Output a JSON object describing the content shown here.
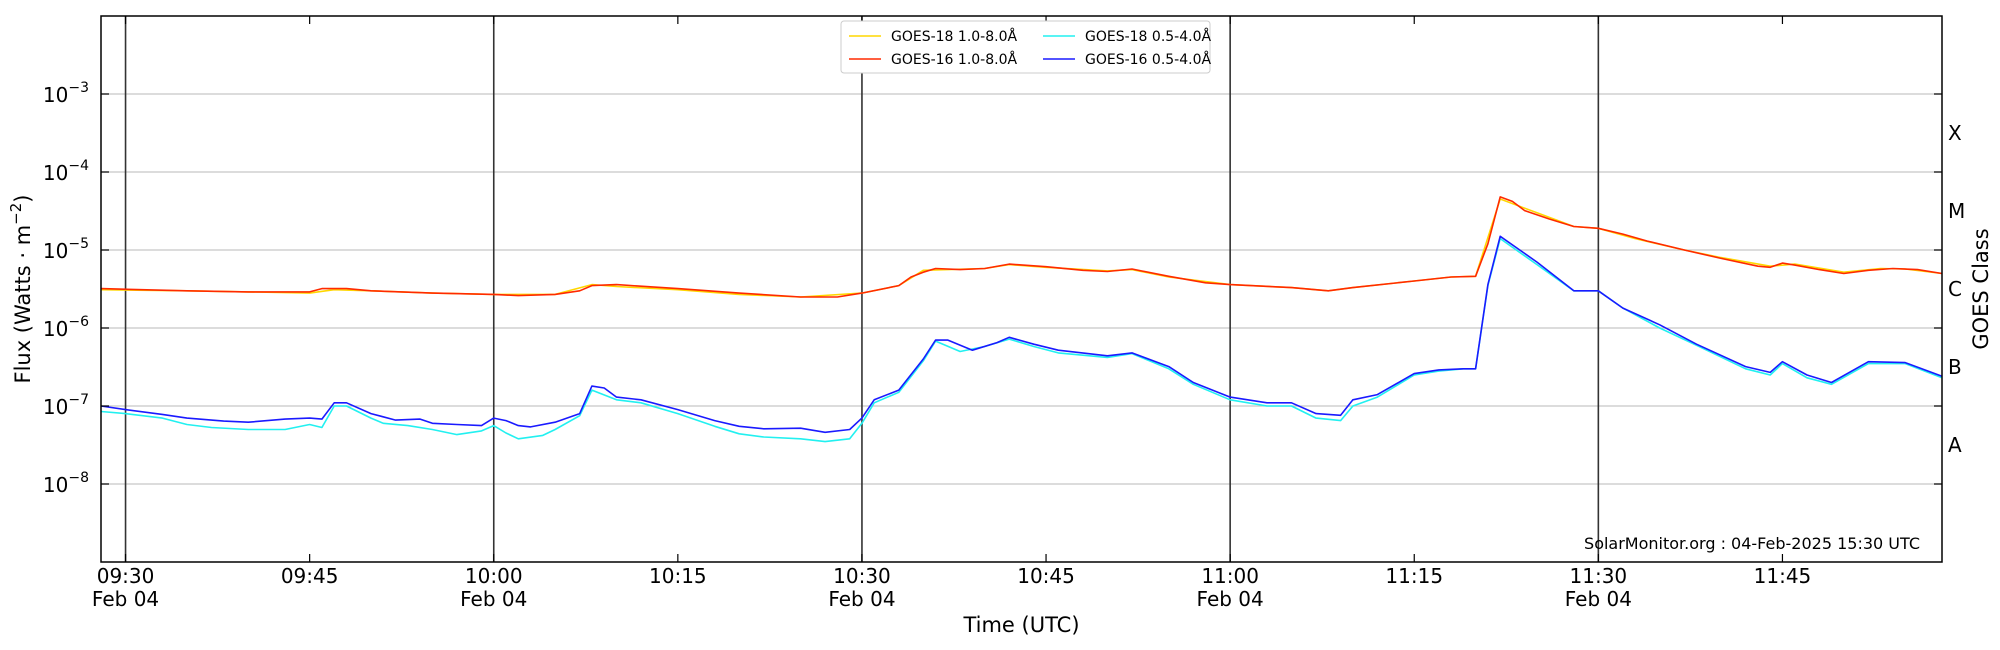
{
  "chart_data": {
    "type": "line",
    "xlabel": "Time (UTC)",
    "ylabel": "Flux (Watts · m⁻²)",
    "y2label": "GOES Class",
    "yscale": "log",
    "ylim": [
      1e-09,
      0.01
    ],
    "xlim": [
      "09:28",
      "11:58"
    ],
    "grid": "horizontal",
    "legend_position": "top-center",
    "credit": "SolarMonitor.org : 04-Feb-2025 15:30 UTC",
    "y_ticks": [
      {
        "value": 0.001,
        "base": "10",
        "exp": "−3"
      },
      {
        "value": 0.0001,
        "base": "10",
        "exp": "−4"
      },
      {
        "value": 1e-05,
        "base": "10",
        "exp": "−5"
      },
      {
        "value": 1e-06,
        "base": "10",
        "exp": "−6"
      },
      {
        "value": 1e-07,
        "base": "10",
        "exp": "−7"
      },
      {
        "value": 1e-08,
        "base": "10",
        "exp": "−8"
      }
    ],
    "x_ticks": [
      {
        "time": "09:30",
        "date": "Feb 04",
        "vline": true
      },
      {
        "time": "09:45",
        "date": "",
        "vline": false
      },
      {
        "time": "10:00",
        "date": "Feb 04",
        "vline": true
      },
      {
        "time": "10:15",
        "date": "",
        "vline": false
      },
      {
        "time": "10:30",
        "date": "Feb 04",
        "vline": true
      },
      {
        "time": "10:45",
        "date": "",
        "vline": false
      },
      {
        "time": "11:00",
        "date": "Feb 04",
        "vline": true
      },
      {
        "time": "11:15",
        "date": "",
        "vline": false
      },
      {
        "time": "11:30",
        "date": "Feb 04",
        "vline": true
      },
      {
        "time": "11:45",
        "date": "",
        "vline": false
      }
    ],
    "goes_classes": [
      {
        "label": "X",
        "lo": 0.0001,
        "hi": 0.001
      },
      {
        "label": "M",
        "lo": 1e-05,
        "hi": 0.0001
      },
      {
        "label": "C",
        "lo": 1e-06,
        "hi": 1e-05
      },
      {
        "label": "B",
        "lo": 1e-07,
        "hi": 1e-06
      },
      {
        "label": "A",
        "lo": 1e-08,
        "hi": 1e-07
      }
    ],
    "series": [
      {
        "name": "GOES-18 1.0-8.0Å",
        "color": "#ffd700",
        "points": [
          [
            "09:28",
            3.1e-06
          ],
          [
            "09:35",
            3e-06
          ],
          [
            "09:40",
            2.9e-06
          ],
          [
            "09:45",
            2.8e-06
          ],
          [
            "09:47",
            3.1e-06
          ],
          [
            "09:50",
            3e-06
          ],
          [
            "09:55",
            2.8e-06
          ],
          [
            "10:00",
            2.7e-06
          ],
          [
            "10:05",
            2.7e-06
          ],
          [
            "10:08",
            3.6e-06
          ],
          [
            "10:10",
            3.4e-06
          ],
          [
            "10:15",
            3.1e-06
          ],
          [
            "10:20",
            2.7e-06
          ],
          [
            "10:25",
            2.5e-06
          ],
          [
            "10:30",
            2.8e-06
          ],
          [
            "10:33",
            3.5e-06
          ],
          [
            "10:35",
            5.5e-06
          ],
          [
            "10:40",
            5.8e-06
          ],
          [
            "10:42",
            6.5e-06
          ],
          [
            "10:45",
            6e-06
          ],
          [
            "10:50",
            5.4e-06
          ],
          [
            "10:52",
            5.6e-06
          ],
          [
            "10:55",
            4.5e-06
          ],
          [
            "11:00",
            3.6e-06
          ],
          [
            "11:05",
            3.3e-06
          ],
          [
            "11:08",
            3e-06
          ],
          [
            "11:10",
            3.3e-06
          ],
          [
            "11:15",
            4e-06
          ],
          [
            "11:18",
            4.5e-06
          ],
          [
            "11:20",
            4.6e-06
          ],
          [
            "11:22",
            4.5e-05
          ],
          [
            "11:25",
            3e-05
          ],
          [
            "11:28",
            2e-05
          ],
          [
            "11:30",
            1.9e-05
          ],
          [
            "11:33",
            1.4e-05
          ],
          [
            "11:37",
            1e-05
          ],
          [
            "11:40",
            8e-06
          ],
          [
            "11:44",
            6.2e-06
          ],
          [
            "11:46",
            6.6e-06
          ],
          [
            "11:50",
            5.2e-06
          ],
          [
            "11:53",
            5.8e-06
          ],
          [
            "11:55",
            5.7e-06
          ],
          [
            "11:58",
            5e-06
          ]
        ]
      },
      {
        "name": "GOES-16 1.0-8.0Å",
        "color": "#ff2a00",
        "points": [
          [
            "09:28",
            3.2e-06
          ],
          [
            "09:35",
            3e-06
          ],
          [
            "09:40",
            2.9e-06
          ],
          [
            "09:45",
            2.9e-06
          ],
          [
            "09:46",
            3.2e-06
          ],
          [
            "09:48",
            3.2e-06
          ],
          [
            "09:50",
            3e-06
          ],
          [
            "09:55",
            2.8e-06
          ],
          [
            "10:00",
            2.7e-06
          ],
          [
            "10:02",
            2.6e-06
          ],
          [
            "10:05",
            2.7e-06
          ],
          [
            "10:07",
            3e-06
          ],
          [
            "10:08",
            3.5e-06
          ],
          [
            "10:10",
            3.6e-06
          ],
          [
            "10:15",
            3.2e-06
          ],
          [
            "10:20",
            2.8e-06
          ],
          [
            "10:25",
            2.5e-06
          ],
          [
            "10:28",
            2.5e-06
          ],
          [
            "10:30",
            2.8e-06
          ],
          [
            "10:33",
            3.5e-06
          ],
          [
            "10:34",
            4.5e-06
          ],
          [
            "10:35",
            5.2e-06
          ],
          [
            "10:36",
            5.8e-06
          ],
          [
            "10:38",
            5.6e-06
          ],
          [
            "10:40",
            5.8e-06
          ],
          [
            "10:42",
            6.6e-06
          ],
          [
            "10:45",
            6.1e-06
          ],
          [
            "10:48",
            5.5e-06
          ],
          [
            "10:50",
            5.3e-06
          ],
          [
            "10:52",
            5.7e-06
          ],
          [
            "10:55",
            4.6e-06
          ],
          [
            "10:58",
            3.8e-06
          ],
          [
            "11:00",
            3.6e-06
          ],
          [
            "11:05",
            3.3e-06
          ],
          [
            "11:08",
            3e-06
          ],
          [
            "11:10",
            3.3e-06
          ],
          [
            "11:15",
            4e-06
          ],
          [
            "11:18",
            4.5e-06
          ],
          [
            "11:20",
            4.6e-06
          ],
          [
            "11:21",
            1.2e-05
          ],
          [
            "11:22",
            4.8e-05
          ],
          [
            "11:23",
            4.2e-05
          ],
          [
            "11:24",
            3.2e-05
          ],
          [
            "11:26",
            2.5e-05
          ],
          [
            "11:28",
            2e-05
          ],
          [
            "11:30",
            1.9e-05
          ],
          [
            "11:32",
            1.6e-05
          ],
          [
            "11:34",
            1.3e-05
          ],
          [
            "11:37",
            1e-05
          ],
          [
            "11:40",
            7.8e-06
          ],
          [
            "11:43",
            6.2e-06
          ],
          [
            "11:44",
            6e-06
          ],
          [
            "11:45",
            6.8e-06
          ],
          [
            "11:46",
            6.4e-06
          ],
          [
            "11:48",
            5.6e-06
          ],
          [
            "11:50",
            5e-06
          ],
          [
            "11:52",
            5.5e-06
          ],
          [
            "11:54",
            5.8e-06
          ],
          [
            "11:56",
            5.6e-06
          ],
          [
            "11:58",
            5e-06
          ]
        ]
      },
      {
        "name": "GOES-18 0.5-4.0Å",
        "color": "#22f0f0",
        "points": [
          [
            "09:28",
            8.5e-08
          ],
          [
            "09:30",
            8e-08
          ],
          [
            "09:33",
            7e-08
          ],
          [
            "09:35",
            5.8e-08
          ],
          [
            "09:37",
            5.3e-08
          ],
          [
            "09:40",
            5e-08
          ],
          [
            "09:43",
            5e-08
          ],
          [
            "09:45",
            5.8e-08
          ],
          [
            "09:46",
            5.3e-08
          ],
          [
            "09:47",
            1e-07
          ],
          [
            "09:48",
            1e-07
          ],
          [
            "09:50",
            7e-08
          ],
          [
            "09:51",
            6e-08
          ],
          [
            "09:53",
            5.6e-08
          ],
          [
            "09:55",
            5e-08
          ],
          [
            "09:57",
            4.3e-08
          ],
          [
            "09:59",
            4.8e-08
          ],
          [
            "10:00",
            5.6e-08
          ],
          [
            "10:01",
            4.5e-08
          ],
          [
            "10:02",
            3.8e-08
          ],
          [
            "10:04",
            4.2e-08
          ],
          [
            "10:05",
            5e-08
          ],
          [
            "10:07",
            7.5e-08
          ],
          [
            "10:08",
            1.6e-07
          ],
          [
            "10:10",
            1.2e-07
          ],
          [
            "10:12",
            1.1e-07
          ],
          [
            "10:15",
            8e-08
          ],
          [
            "10:18",
            5.5e-08
          ],
          [
            "10:20",
            4.4e-08
          ],
          [
            "10:22",
            4e-08
          ],
          [
            "10:25",
            3.8e-08
          ],
          [
            "10:27",
            3.5e-08
          ],
          [
            "10:29",
            3.8e-08
          ],
          [
            "10:30",
            6e-08
          ],
          [
            "10:31",
            1.1e-07
          ],
          [
            "10:33",
            1.5e-07
          ],
          [
            "10:35",
            3.8e-07
          ],
          [
            "10:36",
            6.8e-07
          ],
          [
            "10:38",
            5e-07
          ],
          [
            "10:40",
            5.8e-07
          ],
          [
            "10:42",
            7.2e-07
          ],
          [
            "10:44",
            5.8e-07
          ],
          [
            "10:46",
            4.8e-07
          ],
          [
            "10:50",
            4.2e-07
          ],
          [
            "10:52",
            4.7e-07
          ],
          [
            "10:55",
            3e-07
          ],
          [
            "10:57",
            1.9e-07
          ],
          [
            "11:00",
            1.2e-07
          ],
          [
            "11:03",
            1e-07
          ],
          [
            "11:05",
            1e-07
          ],
          [
            "11:07",
            7e-08
          ],
          [
            "11:09",
            6.5e-08
          ],
          [
            "11:10",
            1e-07
          ],
          [
            "11:12",
            1.3e-07
          ],
          [
            "11:15",
            2.5e-07
          ],
          [
            "11:17",
            2.8e-07
          ],
          [
            "11:19",
            3e-07
          ],
          [
            "11:20",
            3e-07
          ],
          [
            "11:21",
            3.5e-06
          ],
          [
            "11:22",
            1.4e-05
          ],
          [
            "11:25",
            6.5e-06
          ],
          [
            "11:28",
            3e-06
          ],
          [
            "11:30",
            3e-06
          ],
          [
            "11:32",
            1.8e-06
          ],
          [
            "11:35",
            1e-06
          ],
          [
            "11:38",
            6e-07
          ],
          [
            "11:42",
            3e-07
          ],
          [
            "11:44",
            2.5e-07
          ],
          [
            "11:45",
            3.5e-07
          ],
          [
            "11:47",
            2.3e-07
          ],
          [
            "11:49",
            1.9e-07
          ],
          [
            "11:52",
            3.5e-07
          ],
          [
            "11:55",
            3.5e-07
          ],
          [
            "11:58",
            2.3e-07
          ]
        ]
      },
      {
        "name": "GOES-16 0.5-4.0Å",
        "color": "#1a1aff",
        "points": [
          [
            "09:28",
            1e-07
          ],
          [
            "09:30",
            9e-08
          ],
          [
            "09:33",
            7.8e-08
          ],
          [
            "09:35",
            7e-08
          ],
          [
            "09:38",
            6.4e-08
          ],
          [
            "09:40",
            6.2e-08
          ],
          [
            "09:43",
            6.8e-08
          ],
          [
            "09:45",
            7e-08
          ],
          [
            "09:46",
            6.8e-08
          ],
          [
            "09:47",
            1.1e-07
          ],
          [
            "09:48",
            1.1e-07
          ],
          [
            "09:50",
            8e-08
          ],
          [
            "09:52",
            6.6e-08
          ],
          [
            "09:54",
            6.8e-08
          ],
          [
            "09:55",
            6e-08
          ],
          [
            "09:57",
            5.8e-08
          ],
          [
            "09:59",
            5.6e-08
          ],
          [
            "10:00",
            7e-08
          ],
          [
            "10:01",
            6.5e-08
          ],
          [
            "10:02",
            5.6e-08
          ],
          [
            "10:03",
            5.4e-08
          ],
          [
            "10:05",
            6.2e-08
          ],
          [
            "10:07",
            8e-08
          ],
          [
            "10:08",
            1.8e-07
          ],
          [
            "10:09",
            1.7e-07
          ],
          [
            "10:10",
            1.3e-07
          ],
          [
            "10:12",
            1.2e-07
          ],
          [
            "10:15",
            9e-08
          ],
          [
            "10:18",
            6.5e-08
          ],
          [
            "10:20",
            5.5e-08
          ],
          [
            "10:22",
            5.1e-08
          ],
          [
            "10:25",
            5.2e-08
          ],
          [
            "10:27",
            4.6e-08
          ],
          [
            "10:29",
            5e-08
          ],
          [
            "10:30",
            7e-08
          ],
          [
            "10:31",
            1.2e-07
          ],
          [
            "10:33",
            1.6e-07
          ],
          [
            "10:35",
            4e-07
          ],
          [
            "10:36",
            7e-07
          ],
          [
            "10:37",
            7e-07
          ],
          [
            "10:39",
            5.2e-07
          ],
          [
            "10:41",
            6.5e-07
          ],
          [
            "10:42",
            7.6e-07
          ],
          [
            "10:44",
            6.2e-07
          ],
          [
            "10:46",
            5.2e-07
          ],
          [
            "10:50",
            4.4e-07
          ],
          [
            "10:52",
            4.8e-07
          ],
          [
            "10:55",
            3.2e-07
          ],
          [
            "10:57",
            2e-07
          ],
          [
            "11:00",
            1.3e-07
          ],
          [
            "11:03",
            1.1e-07
          ],
          [
            "11:05",
            1.1e-07
          ],
          [
            "11:07",
            8e-08
          ],
          [
            "11:09",
            7.6e-08
          ],
          [
            "11:10",
            1.2e-07
          ],
          [
            "11:12",
            1.4e-07
          ],
          [
            "11:15",
            2.6e-07
          ],
          [
            "11:17",
            2.9e-07
          ],
          [
            "11:19",
            3e-07
          ],
          [
            "11:20",
            3e-07
          ],
          [
            "11:21",
            3.6e-06
          ],
          [
            "11:22",
            1.5e-05
          ],
          [
            "11:25",
            7e-06
          ],
          [
            "11:28",
            3e-06
          ],
          [
            "11:30",
            3e-06
          ],
          [
            "11:32",
            1.8e-06
          ],
          [
            "11:35",
            1.1e-06
          ],
          [
            "11:38",
            6.2e-07
          ],
          [
            "11:42",
            3.2e-07
          ],
          [
            "11:44",
            2.7e-07
          ],
          [
            "11:45",
            3.7e-07
          ],
          [
            "11:47",
            2.5e-07
          ],
          [
            "11:49",
            2e-07
          ],
          [
            "11:52",
            3.7e-07
          ],
          [
            "11:55",
            3.6e-07
          ],
          [
            "11:58",
            2.4e-07
          ]
        ]
      }
    ]
  }
}
